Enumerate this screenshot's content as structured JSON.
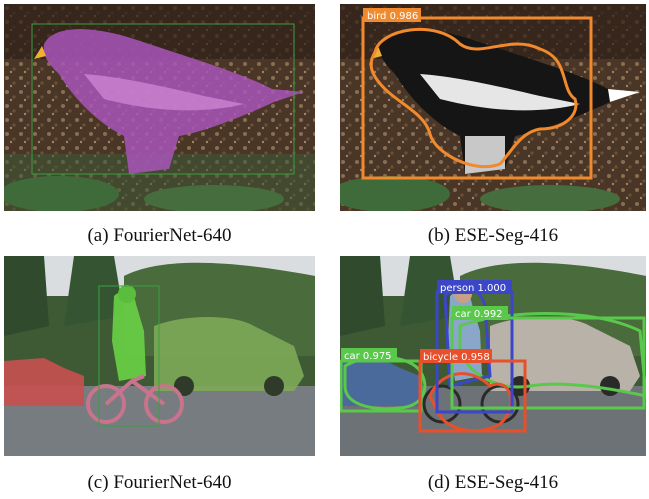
{
  "figure": {
    "panels": [
      {
        "id": "a",
        "caption": "(a) FourierNet-640",
        "detections": []
      },
      {
        "id": "b",
        "caption": "(b) ESE-Seg-416",
        "detections": [
          {
            "label": "bird 0.986",
            "color": "#f08a2c"
          }
        ]
      },
      {
        "id": "c",
        "caption": "(c) FourierNet-640",
        "detections": []
      },
      {
        "id": "d",
        "caption": "(d) ESE-Seg-416",
        "detections": [
          {
            "label": "person 1.000",
            "color": "#3c46c8"
          },
          {
            "label": "car 0.992",
            "color": "#5ac84a"
          },
          {
            "label": "car 0.975",
            "color": "#5ac84a"
          },
          {
            "label": "bicycle 0.958",
            "color": "#e8502c"
          }
        ]
      }
    ]
  }
}
